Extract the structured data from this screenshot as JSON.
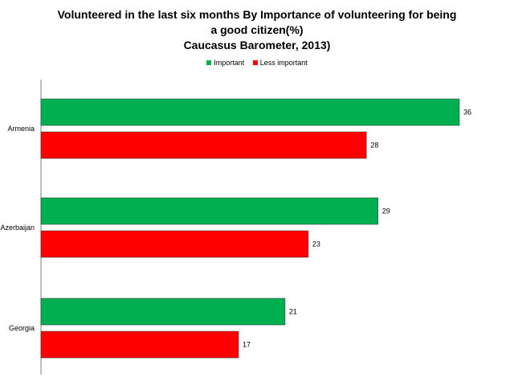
{
  "chart_data": {
    "type": "bar",
    "orientation": "horizontal",
    "title_lines": [
      "Volunteered in the last six months By Importance of volunteering for being",
      "a good citizen(%)",
      "Caucasus Barometer, 2013)"
    ],
    "categories": [
      "Armenia",
      "Azerbaijan",
      "Georgia"
    ],
    "series": [
      {
        "name": "Important",
        "color": "#00b050",
        "values": [
          36,
          29,
          21
        ]
      },
      {
        "name": "Less important",
        "color": "#ff0000",
        "values": [
          28,
          23,
          17
        ]
      }
    ],
    "xlim": [
      0,
      40
    ],
    "grid": false,
    "legend_position": "top"
  }
}
